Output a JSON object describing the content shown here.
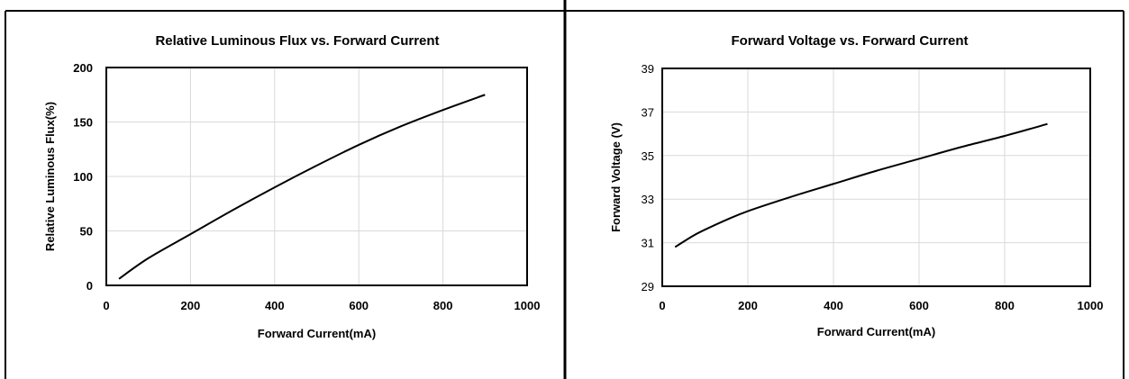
{
  "chart_data": [
    {
      "type": "line",
      "title": "Relative Luminous Flux vs. Forward Current",
      "xlabel": "Forward Current(mA)",
      "ylabel": "Relative Luminous Flux(%)",
      "xlim": [
        0,
        1000
      ],
      "ylim": [
        0,
        200
      ],
      "xticks": [
        0,
        200,
        400,
        600,
        800,
        1000
      ],
      "yticks": [
        0,
        50,
        100,
        150,
        200
      ],
      "grid": true,
      "series": [
        {
          "x": [
            30,
            100,
            200,
            300,
            400,
            500,
            600,
            700,
            800,
            900
          ],
          "y": [
            6,
            25,
            47,
            69,
            90,
            110,
            129,
            146,
            161,
            175
          ]
        }
      ]
    },
    {
      "type": "line",
      "title": "Forward Voltage vs. Forward Current",
      "xlabel": "Forward Current(mA)",
      "ylabel": "Forward Voltage (V)",
      "xlim": [
        0,
        1000
      ],
      "ylim": [
        29,
        39
      ],
      "xticks": [
        0,
        200,
        400,
        600,
        800,
        1000
      ],
      "yticks": [
        29,
        31,
        33,
        35,
        37,
        39
      ],
      "grid": true,
      "series": [
        {
          "x": [
            30,
            50,
            75,
            100,
            150,
            200,
            300,
            400,
            500,
            600,
            700,
            800,
            900
          ],
          "y": [
            30.8,
            31.05,
            31.35,
            31.6,
            32.05,
            32.45,
            33.1,
            33.7,
            34.3,
            34.85,
            35.4,
            35.9,
            36.45
          ]
        }
      ]
    }
  ]
}
